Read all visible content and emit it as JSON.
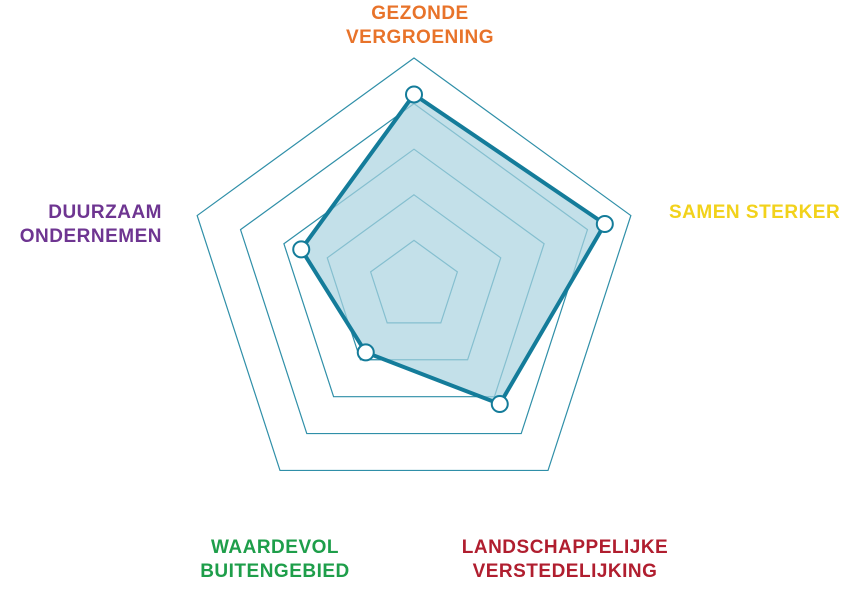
{
  "chart_data": {
    "type": "radar",
    "title": "",
    "scale": [
      0,
      5
    ],
    "rings": [
      1,
      2,
      3,
      4,
      5
    ],
    "grid": true,
    "axes": [
      {
        "label_lines": [
          "GEZONDE",
          "VERGROENING"
        ],
        "color": "#E8732A",
        "value": 4.2
      },
      {
        "label_lines": [
          "SAMEN STERKER"
        ],
        "color": "#F2D21B",
        "value": 4.4
      },
      {
        "label_lines": [
          "LANDSCHAPPELIJKE",
          "VERSTEDELIJKING"
        ],
        "color": "#B01E2F",
        "value": 3.2
      },
      {
        "label_lines": [
          "WAARDEVOL",
          "BUITENGEBIED"
        ],
        "color": "#1E9E4A",
        "value": 1.8
      },
      {
        "label_lines": [
          "DUURZAAM",
          "ONDERNEMEN"
        ],
        "color": "#6E3591",
        "value": 2.6
      }
    ],
    "series": [
      {
        "values": [
          4.2,
          4.4,
          3.2,
          1.8,
          2.6
        ]
      }
    ],
    "colors": {
      "grid": "#2F8FA8",
      "line": "#147C9A",
      "fill": "#A9D3E0",
      "marker_fill": "#ffffff"
    }
  }
}
